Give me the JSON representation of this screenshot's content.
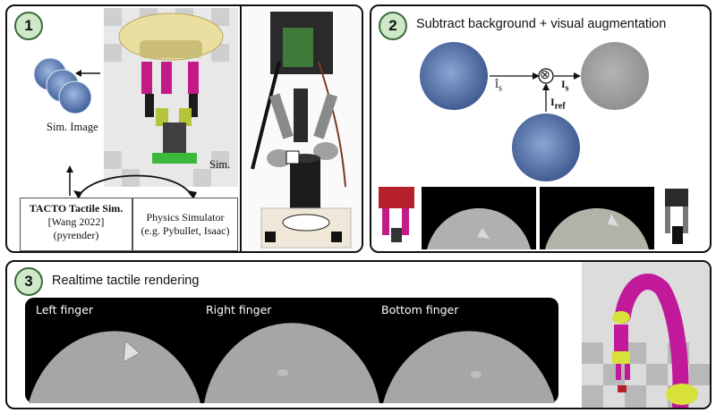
{
  "panel1": {
    "badge": "1",
    "sim_image_label": "Sim. Image",
    "sim_label": "Sim.",
    "tacto_box": {
      "line1": "TACTO Tactile Sim.",
      "line2": "[Wang 2022]",
      "line3": "(pyrender)"
    },
    "physics_box": {
      "line1": "Physics Simulator",
      "line2": "(e.g. Pybullet, Isaac)"
    }
  },
  "panel2": {
    "badge": "2",
    "title": "Subtract background + visual augmentation",
    "symbol_is_hat": "Î",
    "symbol_is_hat_sub": "s",
    "symbol_is": "I",
    "symbol_is_sub": "s",
    "symbol_iref": "I",
    "symbol_iref_sub": "ref",
    "operator": "⊗"
  },
  "panel3": {
    "badge": "3",
    "title": "Realtime tactile rendering",
    "fingers": [
      "Left finger",
      "Right finger",
      "Bottom finger"
    ]
  },
  "colors": {
    "badge_fill": "#cfe8c8",
    "tactile_blue": "#5d7fb8",
    "tactile_gray": "#a8a8a8",
    "robot_magenta": "#c2189a",
    "robot_yellow": "#d8e03a"
  }
}
